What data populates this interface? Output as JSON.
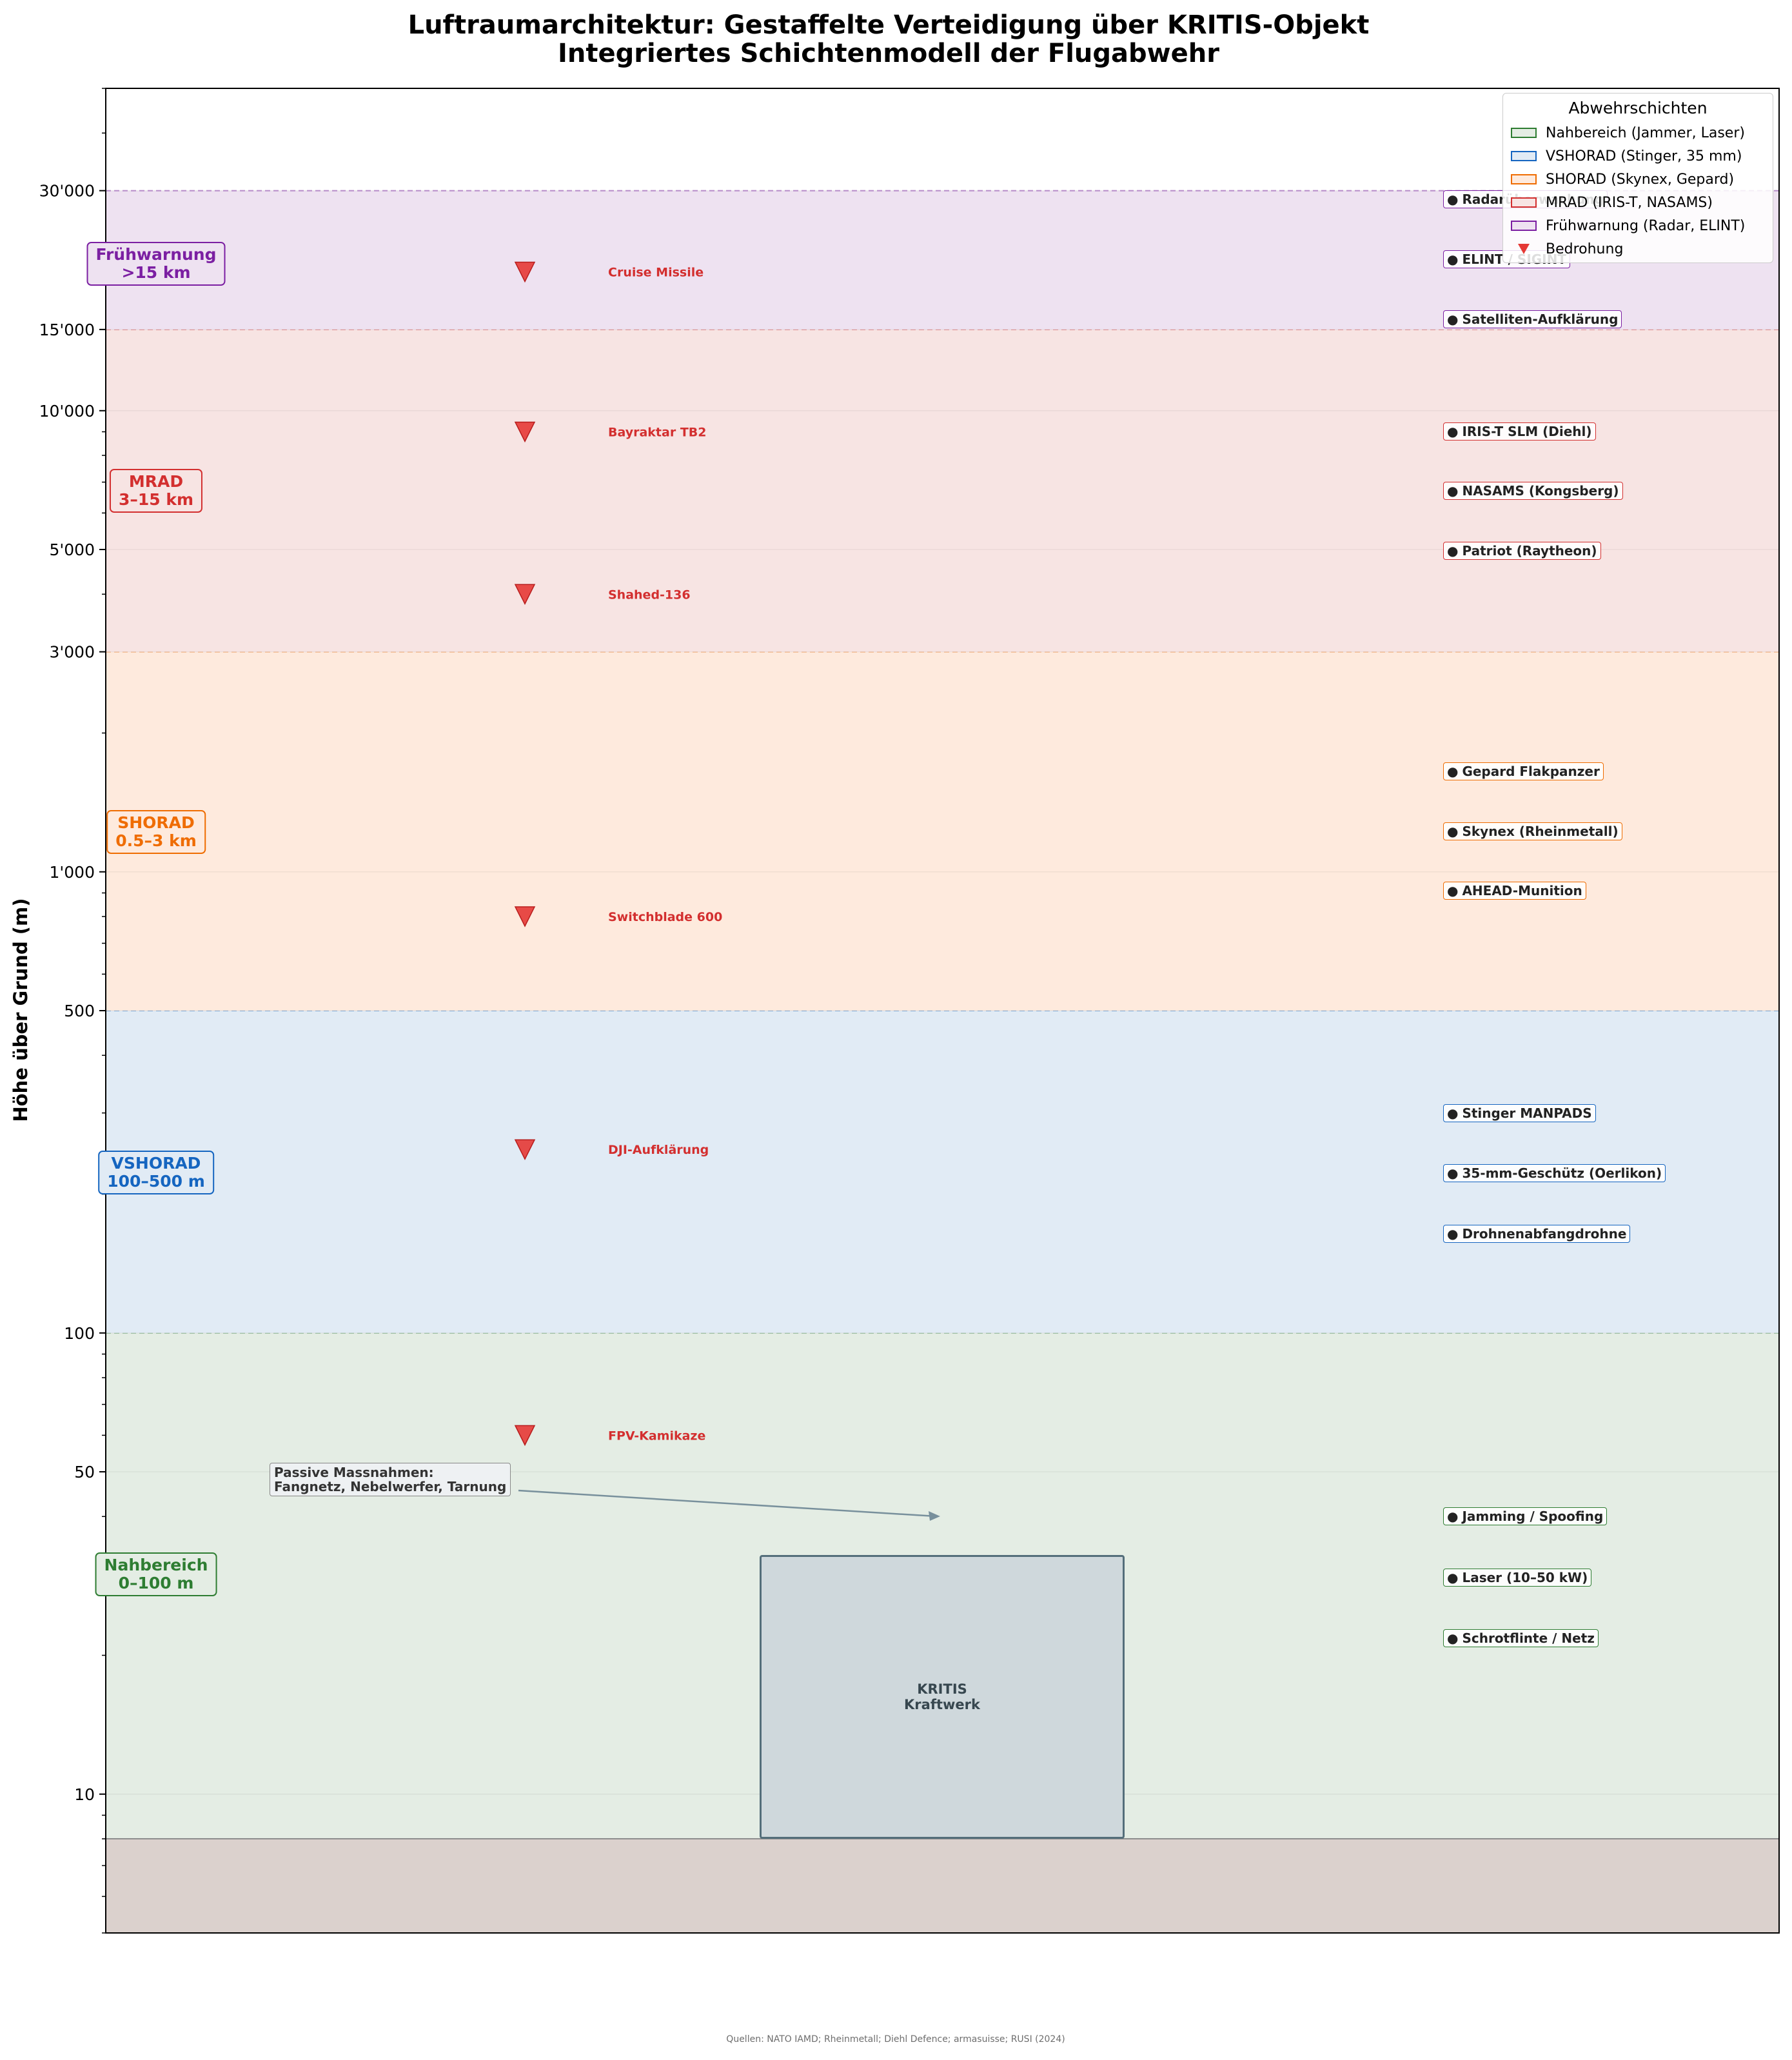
{
  "chart_data": {
    "type": "layered-airspace",
    "title": "Luftraumarchitektur: Gestaffelte Verteidigung über KRITIS-Objekt",
    "subtitle": "Integriertes Schichtenmodell der Flugabwehr",
    "ylabel": "Höhe über Grund (m)",
    "xlabel": "",
    "yscale": "log",
    "ylim": [
      5,
      50000
    ],
    "yticks": [
      {
        "value": 10,
        "label": "10"
      },
      {
        "value": 50,
        "label": "50"
      },
      {
        "value": 100,
        "label": "100"
      },
      {
        "value": 500,
        "label": "500"
      },
      {
        "value": 1000,
        "label": "1'000"
      },
      {
        "value": 3000,
        "label": "3'000"
      },
      {
        "value": 5000,
        "label": "5'000"
      },
      {
        "value": 10000,
        "label": "10'000"
      },
      {
        "value": 15000,
        "label": "15'000"
      },
      {
        "value": 30000,
        "label": "30'000"
      }
    ],
    "ground_level": 8,
    "layers": [
      {
        "name": "Nahbereich",
        "range_label": "0–100 m",
        "legend": "Nahbereich (Jammer, Laser)",
        "bottom": 8,
        "top": 100,
        "color": "#2e7d32",
        "fill": "#e4ede4",
        "label_at": 30,
        "systems": [
          {
            "name": "Jamming / Spoofing",
            "alt": 40
          },
          {
            "name": "Laser (10–50 kW)",
            "alt": 29.5
          },
          {
            "name": "Schrotflinte / Netz",
            "alt": 21.8
          }
        ]
      },
      {
        "name": "VSHORAD",
        "range_label": "100–500 m",
        "legend": "VSHORAD (Stinger, 35 mm)",
        "bottom": 100,
        "top": 500,
        "color": "#1565c0",
        "fill": "#e1ebf5",
        "label_at": 223,
        "systems": [
          {
            "name": "Stinger MANPADS",
            "alt": 300
          },
          {
            "name": "35-mm-Geschütz (Oerlikon)",
            "alt": 222
          },
          {
            "name": "Drohnenabfangdrohne",
            "alt": 164
          }
        ]
      },
      {
        "name": "SHORAD",
        "range_label": "0.5–3 km",
        "legend": "SHORAD (Skynex, Gepard)",
        "bottom": 500,
        "top": 3000,
        "color": "#ef6c00",
        "fill": "#feeadd",
        "label_at": 1220,
        "systems": [
          {
            "name": "Gepard Flakpanzer",
            "alt": 1650
          },
          {
            "name": "Skynex (Rheinmetall)",
            "alt": 1225
          },
          {
            "name": "AHEAD-Munition",
            "alt": 910
          }
        ]
      },
      {
        "name": "MRAD",
        "range_label": "3–15 km",
        "legend": "MRAD (IRIS-T, NASAMS)",
        "bottom": 3000,
        "top": 15000,
        "color": "#d32f2f",
        "fill": "#f7e4e3",
        "label_at": 6700,
        "systems": [
          {
            "name": "IRIS-T SLM (Diehl)",
            "alt": 9000
          },
          {
            "name": "NASAMS (Kongsberg)",
            "alt": 6700
          },
          {
            "name": "Patriot (Raytheon)",
            "alt": 4970
          }
        ]
      },
      {
        "name": "Frühwarnung",
        "range_label": ">15 km",
        "legend": "Frühwarnung (Radar, ELINT)",
        "bottom": 15000,
        "top": 30000,
        "color": "#7b1fa2",
        "fill": "#eee2f1",
        "label_at": 20800,
        "systems": [
          {
            "name": "Radarüberwachung",
            "alt": 28700
          },
          {
            "name": "ELINT / SIGINT",
            "alt": 21300
          },
          {
            "name": "Satelliten-Aufklärung",
            "alt": 15800
          }
        ]
      }
    ],
    "threats": [
      {
        "name": "Cruise Missile",
        "alt": 20000
      },
      {
        "name": "Bayraktar TB2",
        "alt": 9000
      },
      {
        "name": "Shahed-136",
        "alt": 4000
      },
      {
        "name": "Switchblade 600",
        "alt": 800
      },
      {
        "name": "DJI-Aufklärung",
        "alt": 250
      },
      {
        "name": "FPV-Kamikaze",
        "alt": 60
      }
    ],
    "annotations": {
      "passive": [
        "Passive Massnahmen:",
        "Fangnetz, Nebelwerfer, Tarnung"
      ],
      "kritis": [
        "KRITIS",
        "Kraftwerk"
      ],
      "kritis_top_alt": 33
    },
    "legend": {
      "title": "Abwehrschichten",
      "position": "upper right",
      "threat_label": "Bedrohung"
    },
    "source": "Quellen: NATO IAMD; Rheinmetall; Diehl Defence; armasuisse; RUSI (2024)"
  }
}
